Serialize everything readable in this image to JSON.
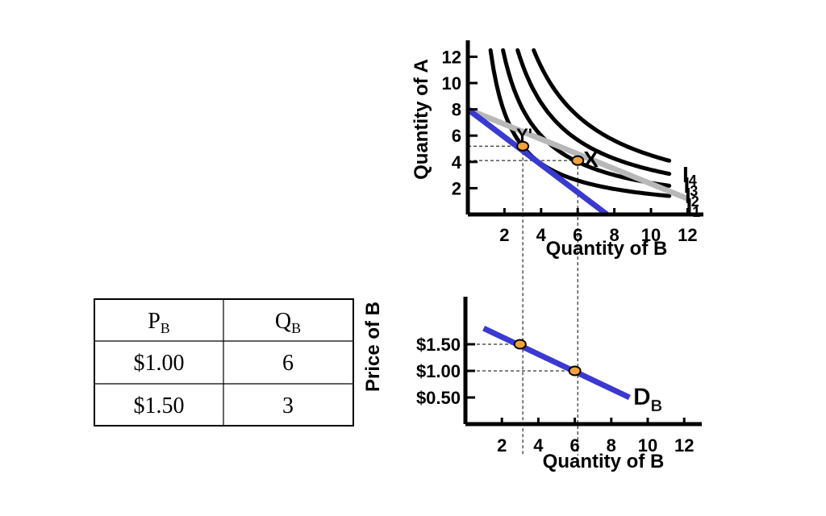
{
  "chart_data": [
    {
      "type": "line",
      "xlabel": "Quantity of B",
      "ylabel": "Quantity of A",
      "xticks": [
        "2",
        "4",
        "6",
        "8",
        "10",
        "12"
      ],
      "yticks": [
        "2",
        "4",
        "6",
        "8",
        "10",
        "12"
      ],
      "xlim": [
        0,
        12.5
      ],
      "ylim": [
        0,
        12.5
      ],
      "indifference_curves": [
        {
          "name": "I1",
          "k": 15.5
        },
        {
          "name": "I2",
          "k": 24
        },
        {
          "name": "I3",
          "k": 34
        },
        {
          "name": "I4",
          "k": 45
        }
      ],
      "budget_lines": [
        {
          "name": "budget-original",
          "color": "#b8b8b8",
          "points": [
            [
              0,
              8
            ],
            [
              12,
              1.2
            ]
          ]
        },
        {
          "name": "budget-new",
          "color": "#3a3ad0",
          "points": [
            [
              0,
              8
            ],
            [
              7.6,
              0
            ]
          ]
        }
      ],
      "points": [
        {
          "label": "Y'",
          "x": 3,
          "y": 5.2
        },
        {
          "label": "X",
          "x": 6,
          "y": 4.1
        }
      ],
      "curve_labels": [
        "I4",
        "I3",
        "I2",
        "I1"
      ]
    },
    {
      "type": "line",
      "xlabel": "Quantity of B",
      "ylabel": "Price of B",
      "xticks": [
        "2",
        "4",
        "6",
        "8",
        "10",
        "12"
      ],
      "ytick_values": [
        0.5,
        1.0,
        1.5
      ],
      "yticks": [
        "$0.50",
        "$1.00",
        "$1.50"
      ],
      "xlim": [
        0,
        12.5
      ],
      "ylim": [
        0,
        2.3
      ],
      "series": [
        {
          "name": "D_B",
          "points": [
            [
              1,
              1.8
            ],
            [
              9,
              0.5
            ]
          ]
        }
      ],
      "points": [
        {
          "x": 3,
          "y": 1.5
        },
        {
          "x": 6,
          "y": 1.0
        }
      ],
      "demand_label": {
        "main": "D",
        "sub": "B"
      }
    },
    {
      "type": "table",
      "headers": [
        {
          "main": "P",
          "sub": "B"
        },
        {
          "main": "Q",
          "sub": "B"
        }
      ],
      "rows": [
        [
          "$1.00",
          "6"
        ],
        [
          "$1.50",
          "3"
        ]
      ]
    }
  ]
}
